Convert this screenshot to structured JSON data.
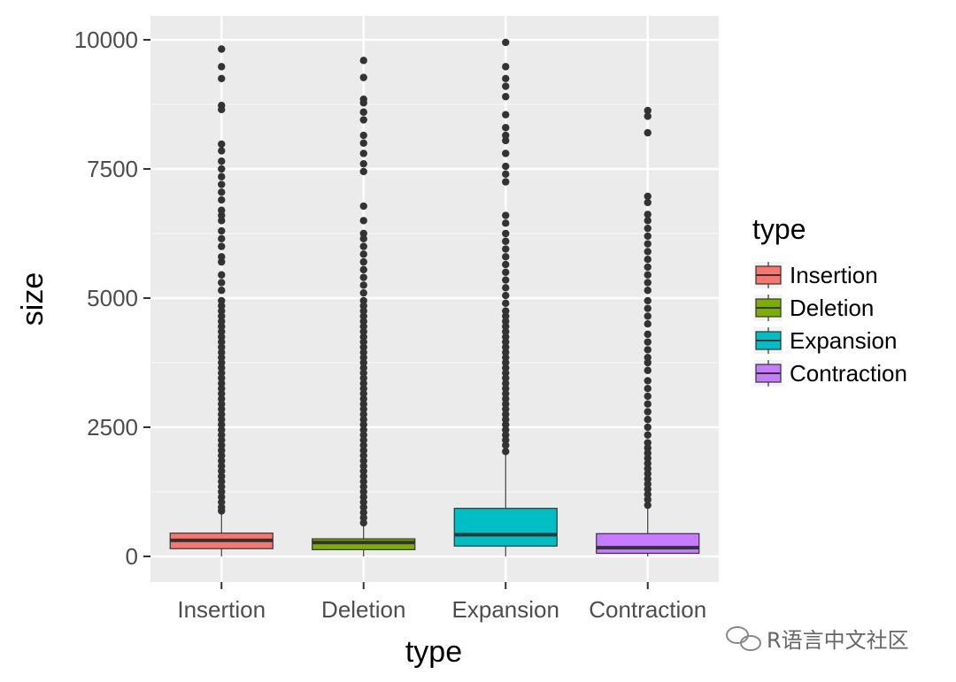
{
  "chart_data": {
    "type": "box",
    "xlabel": "type",
    "ylabel": "size",
    "ylim": [
      -500,
      10500
    ],
    "yticks": [
      0,
      2500,
      5000,
      7500,
      10000
    ],
    "ytick_labels": [
      "0",
      "2500",
      "5000",
      "7500",
      "10000"
    ],
    "grid": true,
    "legend": {
      "title": "type",
      "position": "right"
    },
    "categories": [
      "Insertion",
      "Deletion",
      "Expansion",
      "Contraction"
    ],
    "series": [
      {
        "name": "Insertion",
        "color": "#F8766D",
        "min": 0,
        "q1": 150,
        "median": 310,
        "q3": 450,
        "whisker_high": 880,
        "outliers": [
          880,
          950,
          1050,
          1150,
          1250,
          1350,
          1450,
          1550,
          1650,
          1750,
          1850,
          1950,
          2050,
          2150,
          2250,
          2350,
          2450,
          2550,
          2650,
          2750,
          2850,
          2950,
          3050,
          3150,
          3250,
          3350,
          3450,
          3550,
          3650,
          3750,
          3850,
          3950,
          4050,
          4150,
          4250,
          4350,
          4450,
          4550,
          4650,
          4750,
          4850,
          4950,
          5150,
          5300,
          5450,
          5700,
          5800,
          6000,
          6150,
          6300,
          6500,
          6600,
          6700,
          6900,
          7050,
          7200,
          7350,
          7500,
          7650,
          7850,
          7980,
          8650,
          8730,
          9250,
          9480,
          9820
        ]
      },
      {
        "name": "Deletion",
        "color": "#7CAE00",
        "min": 0,
        "q1": 130,
        "median": 270,
        "q3": 340,
        "whisker_high": 650,
        "outliers": [
          650,
          750,
          850,
          950,
          1050,
          1150,
          1250,
          1350,
          1450,
          1550,
          1650,
          1750,
          1850,
          1950,
          2050,
          2150,
          2250,
          2350,
          2450,
          2550,
          2650,
          2750,
          2850,
          2950,
          3050,
          3150,
          3250,
          3350,
          3450,
          3550,
          3650,
          3750,
          3850,
          3950,
          4050,
          4150,
          4250,
          4350,
          4450,
          4550,
          4650,
          4750,
          4850,
          4950,
          5100,
          5250,
          5400,
          5550,
          5700,
          5850,
          6000,
          6150,
          6250,
          6500,
          6780,
          7450,
          7600,
          7800,
          8000,
          8150,
          8450,
          8600,
          8780,
          8850,
          9270,
          9600
        ]
      },
      {
        "name": "Expansion",
        "color": "#00BFC4",
        "min": 0,
        "q1": 200,
        "median": 420,
        "q3": 930,
        "whisker_high": 2030,
        "outliers": [
          2030,
          2150,
          2250,
          2350,
          2450,
          2550,
          2650,
          2750,
          2850,
          2950,
          3050,
          3150,
          3250,
          3350,
          3450,
          3550,
          3650,
          3750,
          3850,
          3950,
          4050,
          4150,
          4250,
          4350,
          4450,
          4550,
          4650,
          4750,
          4900,
          5050,
          5200,
          5350,
          5500,
          5650,
          5800,
          5950,
          6100,
          6250,
          6450,
          6600,
          7250,
          7400,
          7550,
          7800,
          8050,
          8150,
          8300,
          8550,
          8900,
          9100,
          9250,
          9480,
          9950
        ]
      },
      {
        "name": "Contraction",
        "color": "#C77CFF",
        "min": 0,
        "q1": 60,
        "median": 170,
        "q3": 440,
        "whisker_high": 990,
        "outliers": [
          990,
          1100,
          1200,
          1300,
          1400,
          1500,
          1600,
          1700,
          1800,
          1900,
          2000,
          2100,
          2200,
          2350,
          2500,
          2650,
          2800,
          2950,
          3100,
          3250,
          3400,
          3600,
          3750,
          3850,
          4000,
          4150,
          4300,
          4500,
          4650,
          4800,
          4950,
          5150,
          5300,
          5450,
          5600,
          5750,
          5900,
          6050,
          6200,
          6350,
          6500,
          6620,
          6850,
          6970,
          8200,
          8520,
          8630
        ]
      }
    ]
  },
  "watermark": {
    "text": "R语言中文社区"
  }
}
